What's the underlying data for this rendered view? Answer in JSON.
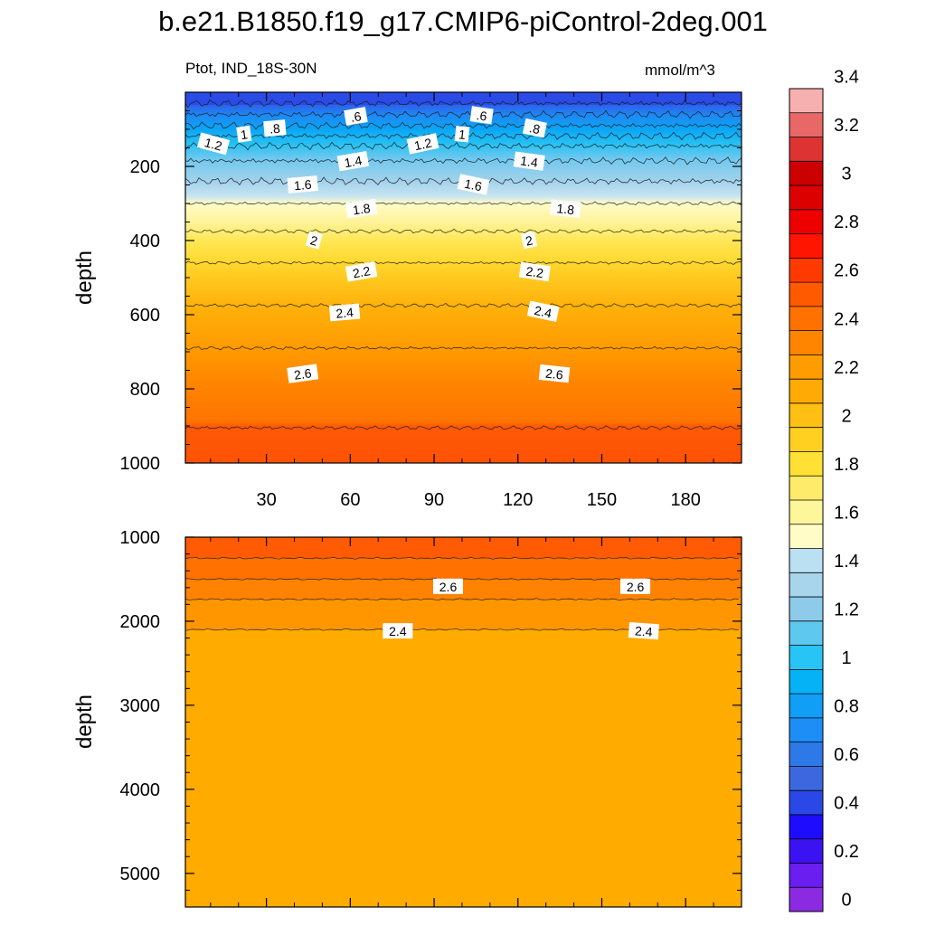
{
  "title": "b.e21.B1850.f19_g17.CMIP6-piControl-2deg.001",
  "left_string": "Ptot, IND_18S-30N",
  "right_string": "mmol/m^3",
  "chart_data": [
    {
      "type": "heatmap",
      "panel": "upper",
      "variable": "Ptot",
      "region": "IND_18S-30N",
      "units": "mmol/m^3",
      "ylabel": "depth",
      "xlabel": "",
      "ylim": [
        1000,
        0
      ],
      "xlim": [
        1,
        200
      ],
      "x_ticks": [
        30,
        60,
        90,
        120,
        150,
        180
      ],
      "y_ticks": [
        200,
        400,
        600,
        800,
        1000
      ],
      "contour_lines": [
        {
          "level": 0.4,
          "depth": 30
        },
        {
          "level": 0.6,
          "depth": 60
        },
        {
          "level": 0.8,
          "depth": 90
        },
        {
          "level": 1.0,
          "depth": 118
        },
        {
          "level": 1.2,
          "depth": 145
        },
        {
          "level": 1.4,
          "depth": 185
        },
        {
          "level": 1.6,
          "depth": 240
        },
        {
          "level": 1.8,
          "depth": 300
        },
        {
          "level": 2.0,
          "depth": 375
        },
        {
          "level": 2.2,
          "depth": 460
        },
        {
          "level": 2.4,
          "depth": 575
        },
        {
          "level": 2.6,
          "depth": 690
        },
        {
          "level": 2.8,
          "depth": 905
        }
      ],
      "contour_labels": [
        {
          "text": ".6",
          "x": 62,
          "depth": 66
        },
        {
          "text": ".6",
          "x": 107,
          "depth": 63
        },
        {
          "text": ".8",
          "x": 33,
          "depth": 98
        },
        {
          "text": ".8",
          "x": 126,
          "depth": 98
        },
        {
          "text": "1",
          "x": 22,
          "depth": 114
        },
        {
          "text": "1",
          "x": 100,
          "depth": 114
        },
        {
          "text": "1.2",
          "x": 11,
          "depth": 140
        },
        {
          "text": "1.2",
          "x": 86,
          "depth": 140
        },
        {
          "text": "1.4",
          "x": 61,
          "depth": 187
        },
        {
          "text": "1.4",
          "x": 124,
          "depth": 187
        },
        {
          "text": "1.6",
          "x": 43,
          "depth": 250
        },
        {
          "text": "1.6",
          "x": 104,
          "depth": 250
        },
        {
          "text": "1.8",
          "x": 64,
          "depth": 315
        },
        {
          "text": "1.8",
          "x": 137,
          "depth": 315
        },
        {
          "text": "2",
          "x": 47,
          "depth": 400
        },
        {
          "text": "2",
          "x": 124,
          "depth": 400
        },
        {
          "text": "2.2",
          "x": 64,
          "depth": 485
        },
        {
          "text": "2.2",
          "x": 126,
          "depth": 485
        },
        {
          "text": "2.4",
          "x": 58,
          "depth": 595
        },
        {
          "text": "2.4",
          "x": 129,
          "depth": 592
        },
        {
          "text": "2.6",
          "x": 43,
          "depth": 760
        },
        {
          "text": "2.6",
          "x": 133,
          "depth": 760
        }
      ]
    },
    {
      "type": "heatmap",
      "panel": "lower",
      "ylabel": "depth",
      "ylim": [
        1000,
        5400
      ],
      "xlim": [
        1,
        200
      ],
      "y_ticks": [
        1000,
        2000,
        3000,
        4000,
        5000
      ],
      "contour_lines": [
        {
          "level": 2.8,
          "depth": 1250
        },
        {
          "level": 2.6,
          "depth": 1500
        },
        {
          "level": 2.6,
          "depth": 1740
        },
        {
          "level": 2.4,
          "depth": 2100
        }
      ],
      "contour_labels": [
        {
          "text": "2.6",
          "x": 95,
          "depth": 1590
        },
        {
          "text": "2.6",
          "x": 162,
          "depth": 1590
        },
        {
          "text": "2.4",
          "x": 77,
          "depth": 2120
        },
        {
          "text": "2.4",
          "x": 165,
          "depth": 2120
        }
      ]
    }
  ],
  "colorbar": {
    "tick_labels": [
      "0",
      "0.2",
      "0.4",
      "0.6",
      "0.8",
      "1",
      "1.2",
      "1.4",
      "1.6",
      "1.8",
      "2",
      "2.2",
      "2.4",
      "2.6",
      "2.8",
      "3",
      "3.2",
      "3.4"
    ],
    "colors": [
      "#8a2be2",
      "#6a1ef0",
      "#3b12f2",
      "#1e0cff",
      "#2948e6",
      "#3b69dd",
      "#2e79e8",
      "#1d8ef5",
      "#109ef7",
      "#05b2f5",
      "#28c4f5",
      "#5ec8ef",
      "#8ecbeb",
      "#a8d4ec",
      "#bbe0f2",
      "#fffcc8",
      "#fff59a",
      "#ffeb6a",
      "#ffe135",
      "#ffd020",
      "#ffbf13",
      "#ffaa05",
      "#ff9c00",
      "#ff8500",
      "#ff7200",
      "#ff5a00",
      "#ff3a00",
      "#ff1500",
      "#ee0000",
      "#dd0000",
      "#cc0000",
      "#dd3333",
      "#e86868",
      "#f7b0b0"
    ]
  }
}
